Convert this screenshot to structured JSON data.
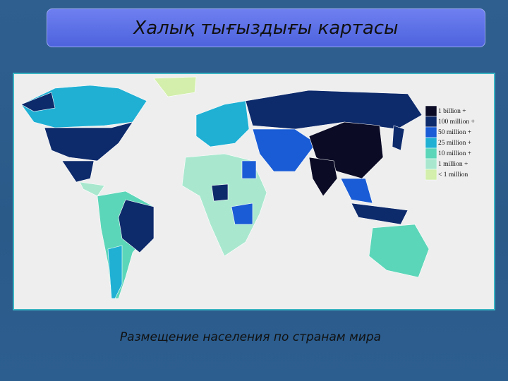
{
  "title": "Халық тығыздығы картасы",
  "caption": "Размещение  населения по странам мира",
  "legend": [
    {
      "label": "1 billion +",
      "color": "#0b0b26"
    },
    {
      "label": "100 million +",
      "color": "#0d2a6b"
    },
    {
      "label": "50 million +",
      "color": "#1a5cd6"
    },
    {
      "label": "25 million +",
      "color": "#1fb0d4"
    },
    {
      "label": "10 million +",
      "color": "#5cd6b8"
    },
    {
      "label": "1 million +",
      "color": "#a9e8cf"
    },
    {
      "label": "< 1 million",
      "color": "#d3efab"
    }
  ]
}
